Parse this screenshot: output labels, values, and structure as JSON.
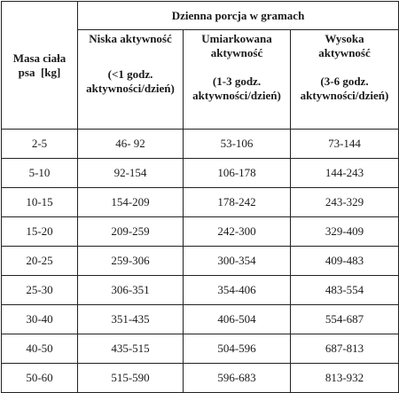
{
  "header": {
    "mass_label_line1": "Masa ciała",
    "mass_label_line2": "psa  [kg]",
    "daily_portion": "Dzienna porcja w gramach"
  },
  "columns": [
    {
      "title_line1": "Niska aktywność",
      "title_line2": "",
      "detail_line1": "(<1 godz.",
      "detail_line2": "aktywności/dzień)"
    },
    {
      "title_line1": "Umiarkowana",
      "title_line2": "aktywność",
      "detail_line1": "(1-3 godz.",
      "detail_line2": "aktywności/dzień)"
    },
    {
      "title_line1": "Wysoka",
      "title_line2": "aktywność",
      "detail_line1": "(3-6 godz.",
      "detail_line2": "aktywności/dzień)"
    }
  ],
  "rows": [
    {
      "mass": "2-5",
      "low": "46- 92",
      "medium": "53-106",
      "high": "73-144"
    },
    {
      "mass": "5-10",
      "low": "92-154",
      "medium": "106-178",
      "high": "144-243"
    },
    {
      "mass": "10-15",
      "low": "154-209",
      "medium": "178-242",
      "high": "243-329"
    },
    {
      "mass": "15-20",
      "low": "209-259",
      "medium": "242-300",
      "high": "329-409"
    },
    {
      "mass": "20-25",
      "low": "259-306",
      "medium": "300-354",
      "high": "409-483"
    },
    {
      "mass": "25-30",
      "low": "306-351",
      "medium": "354-406",
      "high": "483-554"
    },
    {
      "mass": "30-40",
      "low": "351-435",
      "medium": "406-504",
      "high": "554-687"
    },
    {
      "mass": "40-50",
      "low": "435-515",
      "medium": "504-596",
      "high": "687-813"
    },
    {
      "mass": "50-60",
      "low": "515-590",
      "medium": "596-683",
      "high": "813-932"
    }
  ]
}
